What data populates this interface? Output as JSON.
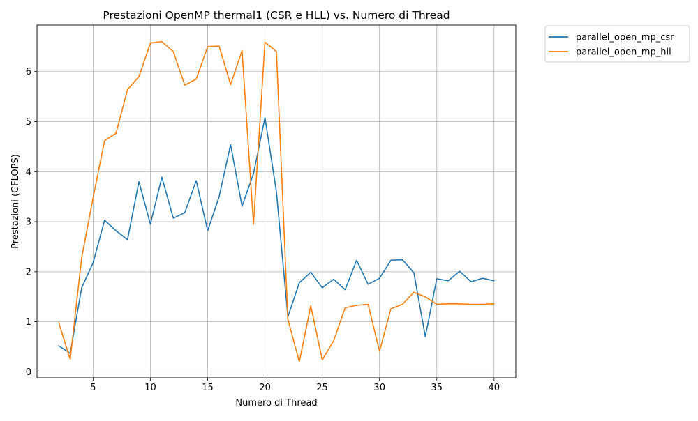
{
  "chart_data": {
    "type": "line",
    "title": "Prestazioni OpenMP thermal1 (CSR e HLL) vs. Numero di Thread",
    "xlabel": "Numero di Thread",
    "ylabel": "Prestazioni (GFLOPS)",
    "xlim": [
      0.1,
      41.9
    ],
    "ylim": [
      -0.12,
      6.93
    ],
    "xticks": [
      5,
      10,
      15,
      20,
      25,
      30,
      35,
      40
    ],
    "yticks": [
      0,
      1,
      2,
      3,
      4,
      5,
      6
    ],
    "grid": true,
    "legend_position": "outside-top-right",
    "x": [
      2,
      3,
      4,
      5,
      6,
      7,
      8,
      9,
      10,
      11,
      12,
      13,
      14,
      15,
      16,
      17,
      18,
      19,
      20,
      21,
      22,
      23,
      24,
      25,
      26,
      27,
      28,
      29,
      30,
      31,
      32,
      33,
      34,
      35,
      36,
      37,
      38,
      39,
      40
    ],
    "series": [
      {
        "name": "parallel_open_mp_csr",
        "color": "#1f77b4",
        "values": [
          0.52,
          0.37,
          1.68,
          2.18,
          3.03,
          2.82,
          2.64,
          3.8,
          2.95,
          3.89,
          3.07,
          3.18,
          3.82,
          2.82,
          3.5,
          4.54,
          3.31,
          3.96,
          5.08,
          3.6,
          1.1,
          1.78,
          1.99,
          1.68,
          1.85,
          1.64,
          2.23,
          1.75,
          1.87,
          2.23,
          2.24,
          1.98,
          0.7,
          1.86,
          1.82,
          2.01,
          1.8,
          1.87,
          1.82
        ]
      },
      {
        "name": "parallel_open_mp_hll",
        "color": "#ff7f0e",
        "values": [
          0.98,
          0.25,
          2.28,
          3.48,
          4.62,
          4.77,
          5.64,
          5.9,
          6.57,
          6.6,
          6.4,
          5.73,
          5.85,
          6.5,
          6.51,
          5.74,
          6.42,
          2.95,
          6.59,
          6.4,
          1.05,
          0.2,
          1.32,
          0.24,
          0.62,
          1.28,
          1.33,
          1.35,
          0.41,
          1.26,
          1.35,
          1.59,
          1.5,
          1.35,
          1.36,
          1.36,
          1.35,
          1.35,
          1.36
        ]
      }
    ]
  }
}
